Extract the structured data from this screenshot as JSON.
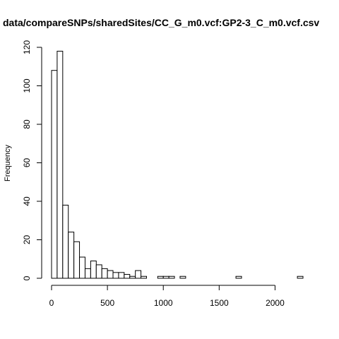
{
  "chart_data": {
    "type": "bar",
    "title": "data/compareSNPs/sharedSites/CC_G_m0.vcf:GP2-3_C_m0.vcf.csv",
    "xlabel": "",
    "ylabel": "Frequency",
    "bin_width": 50,
    "bin_start": 0,
    "values": [
      108,
      118,
      38,
      24,
      19,
      11,
      5,
      9,
      7,
      5,
      4,
      3,
      3,
      2,
      1,
      4,
      1,
      0,
      0,
      1,
      1,
      1,
      0,
      1,
      0,
      0,
      0,
      0,
      0,
      0,
      0,
      0,
      0,
      1,
      0,
      0,
      0,
      0,
      0,
      0,
      0,
      0,
      0,
      0,
      1
    ],
    "xlim": [
      0,
      2250
    ],
    "ylim": [
      0,
      120
    ],
    "x_ticks": [
      0,
      500,
      1000,
      1500,
      2000
    ],
    "y_ticks": [
      0,
      20,
      40,
      60,
      80,
      100,
      120
    ],
    "grid": false,
    "legend": "none"
  }
}
